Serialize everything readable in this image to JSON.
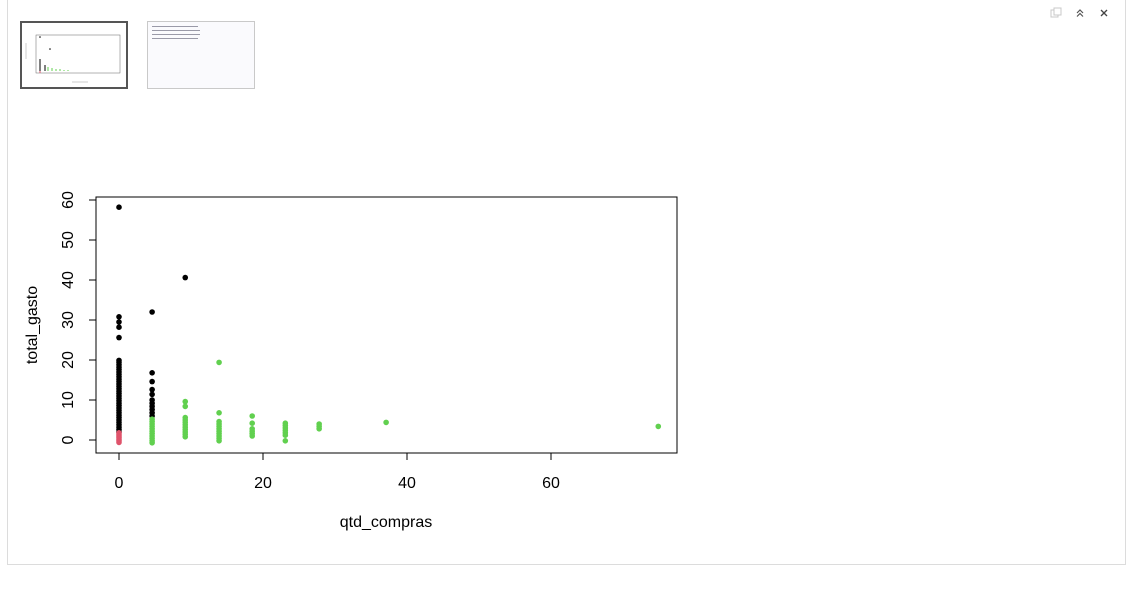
{
  "toolbar": {
    "icons": [
      "restore-icon",
      "collapse-up-icon",
      "close-icon"
    ]
  },
  "thumbnails": [
    {
      "kind": "plot",
      "active": true
    },
    {
      "kind": "console",
      "active": false
    }
  ],
  "chart_data": {
    "type": "scatter",
    "title": "",
    "xlabel": "qtd_compras",
    "ylabel": "total_gasto",
    "xlim": [
      0,
      75
    ],
    "ylim": [
      -3,
      61
    ],
    "xticks": [
      0,
      20,
      40,
      60
    ],
    "yticks": [
      0,
      10,
      20,
      30,
      40,
      50,
      60
    ],
    "grid": false,
    "legend": "none",
    "colors": {
      "black": "#000000",
      "red": "#DF536B",
      "green": "#61D04F"
    },
    "series": [
      {
        "color": "black",
        "points": [
          [
            0,
            58.2
          ],
          [
            0,
            30.8
          ],
          [
            0,
            29.5
          ],
          [
            0,
            28.2
          ],
          [
            0,
            25.6
          ],
          [
            0,
            19.9
          ],
          [
            0,
            19.4
          ],
          [
            0,
            18.8
          ],
          [
            0,
            18.2
          ],
          [
            0,
            17.6
          ],
          [
            0,
            17.0
          ],
          [
            0,
            16.4
          ],
          [
            0,
            15.8
          ],
          [
            0,
            15.2
          ],
          [
            0,
            14.6
          ],
          [
            0,
            14.0
          ],
          [
            0,
            13.4
          ],
          [
            0,
            12.8
          ],
          [
            0,
            12.2
          ],
          [
            0,
            11.6
          ],
          [
            0,
            11.0
          ],
          [
            0,
            10.4
          ],
          [
            0,
            9.8
          ],
          [
            0,
            9.2
          ],
          [
            0,
            8.6
          ],
          [
            0,
            8.0
          ],
          [
            0,
            7.4
          ],
          [
            0,
            6.8
          ],
          [
            0,
            6.2
          ],
          [
            0,
            5.6
          ],
          [
            0,
            5.0
          ],
          [
            0,
            4.4
          ],
          [
            0,
            3.8
          ],
          [
            0,
            3.2
          ],
          [
            0,
            2.6
          ],
          [
            0,
            2.0
          ],
          [
            4.6,
            32.0
          ],
          [
            4.6,
            16.8
          ],
          [
            4.6,
            14.6
          ],
          [
            4.6,
            12.6
          ],
          [
            4.6,
            11.4
          ],
          [
            4.6,
            10.0
          ],
          [
            4.6,
            9.2
          ],
          [
            4.6,
            8.4
          ],
          [
            4.6,
            7.6
          ],
          [
            4.6,
            6.8
          ],
          [
            4.6,
            6.0
          ],
          [
            9.2,
            40.6
          ]
        ]
      },
      {
        "color": "red",
        "points": [
          [
            0,
            1.8
          ],
          [
            0,
            1.4
          ],
          [
            0,
            1.0
          ],
          [
            0,
            0.6
          ],
          [
            0,
            0.2
          ],
          [
            0,
            -0.2
          ],
          [
            0,
            -0.6
          ]
        ]
      },
      {
        "color": "green",
        "points": [
          [
            4.6,
            5.2
          ],
          [
            4.6,
            4.6
          ],
          [
            4.6,
            4.0
          ],
          [
            4.6,
            3.4
          ],
          [
            4.6,
            2.8
          ],
          [
            4.6,
            2.2
          ],
          [
            4.6,
            1.6
          ],
          [
            4.6,
            1.0
          ],
          [
            4.6,
            0.4
          ],
          [
            4.6,
            -0.2
          ],
          [
            4.6,
            -0.7
          ],
          [
            9.2,
            9.6
          ],
          [
            9.2,
            8.4
          ],
          [
            9.2,
            5.6
          ],
          [
            9.2,
            5.0
          ],
          [
            9.2,
            4.4
          ],
          [
            9.2,
            3.8
          ],
          [
            9.2,
            3.2
          ],
          [
            9.2,
            2.6
          ],
          [
            9.2,
            2.0
          ],
          [
            9.2,
            1.4
          ],
          [
            9.2,
            0.8
          ],
          [
            13.9,
            19.4
          ],
          [
            13.9,
            6.8
          ],
          [
            13.9,
            4.6
          ],
          [
            13.9,
            4.0
          ],
          [
            13.9,
            3.4
          ],
          [
            13.9,
            2.8
          ],
          [
            13.9,
            2.2
          ],
          [
            13.9,
            1.6
          ],
          [
            13.9,
            1.0
          ],
          [
            13.9,
            0.4
          ],
          [
            13.9,
            -0.2
          ],
          [
            18.5,
            6.0
          ],
          [
            18.5,
            4.2
          ],
          [
            18.5,
            2.8
          ],
          [
            18.5,
            2.2
          ],
          [
            18.5,
            1.6
          ],
          [
            18.5,
            1.0
          ],
          [
            23.1,
            4.2
          ],
          [
            23.1,
            3.6
          ],
          [
            23.1,
            3.0
          ],
          [
            23.1,
            2.4
          ],
          [
            23.1,
            1.8
          ],
          [
            23.1,
            1.2
          ],
          [
            23.1,
            -0.2
          ],
          [
            27.8,
            4.0
          ],
          [
            27.8,
            3.4
          ],
          [
            27.8,
            2.8
          ],
          [
            37.1,
            4.4
          ],
          [
            74.9,
            3.4
          ]
        ]
      }
    ]
  }
}
